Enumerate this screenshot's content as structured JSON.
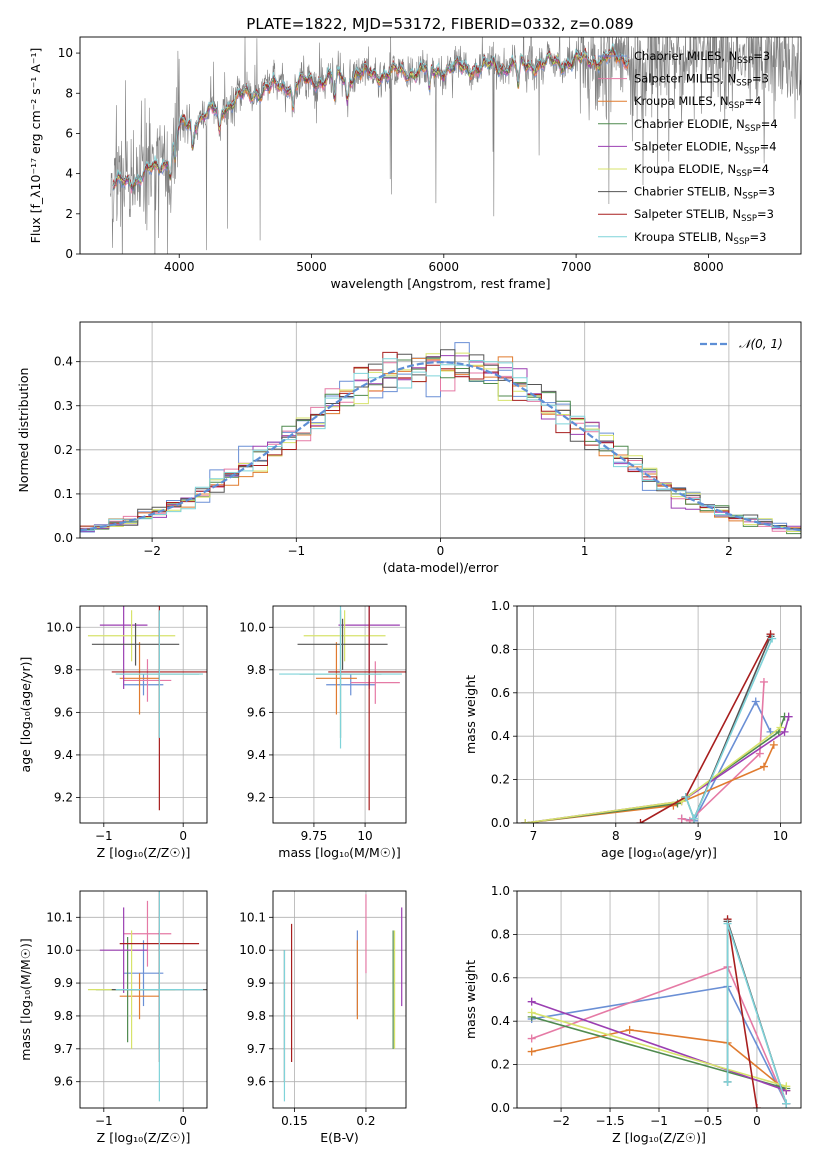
{
  "figure": {
    "title": "PLATE=1822, MJD=53172, FIBERID=0332, z=0.089"
  },
  "colors": {
    "Chabrier MILES": "#6a8fd5",
    "Salpeter MILES": "#e57aa5",
    "Kroupa MILES": "#e07b2f",
    "Chabrier ELODIE": "#4f8a4f",
    "Salpeter ELODIE": "#9b3fb2",
    "Kroupa ELODIE": "#d7e36b",
    "Chabrier STELIB": "#555555",
    "Salpeter STELIB": "#a81f1f",
    "Kroupa STELIB": "#7fd3d9",
    "data_spectrum": "#808080",
    "normal_curve": "#5e8fd6"
  },
  "chart_data": [
    {
      "id": "spectrum",
      "type": "line",
      "xlabel": "wavelength [Angstrom, rest frame]",
      "ylabel": "Flux [f_λ10⁻¹⁷ erg cm⁻² s⁻¹ A⁻¹]",
      "xlim": [
        3250,
        8700
      ],
      "ylim": [
        0,
        10.8
      ],
      "xticks": [
        4000,
        5000,
        6000,
        7000,
        8000
      ],
      "yticks": [
        0,
        2,
        4,
        6,
        8,
        10
      ],
      "legend_position": "right",
      "legend": [
        {
          "name": "Chabrier MILES, N_SSP=3",
          "base": "Chabrier MILES, N",
          "sub": "SSP",
          "tail": "=3"
        },
        {
          "name": "Salpeter MILES, N_SSP=3",
          "base": "Salpeter MILES, N",
          "sub": "SSP",
          "tail": "=3"
        },
        {
          "name": "Kroupa MILES, N_SSP=4",
          "base": "Kroupa MILES, N",
          "sub": "SSP",
          "tail": "=4"
        },
        {
          "name": "Chabrier ELODIE, N_SSP=4",
          "base": "Chabrier ELODIE, N",
          "sub": "SSP",
          "tail": "=4"
        },
        {
          "name": "Salpeter ELODIE, N_SSP=4",
          "base": "Salpeter ELODIE, N",
          "sub": "SSP",
          "tail": "=4"
        },
        {
          "name": "Kroupa ELODIE, N_SSP=4",
          "base": "Kroupa ELODIE, N",
          "sub": "SSP",
          "tail": "=4"
        },
        {
          "name": "Chabrier STELIB, N_SSP=3",
          "base": "Chabrier STELIB, N",
          "sub": "SSP",
          "tail": "=3"
        },
        {
          "name": "Salpeter STELIB, N_SSP=3",
          "base": "Salpeter STELIB, N",
          "sub": "SSP",
          "tail": "=3"
        },
        {
          "name": "Kroupa STELIB, N_SSP=3",
          "base": "Kroupa STELIB, N",
          "sub": "SSP",
          "tail": "=3"
        }
      ],
      "continuum": {
        "x": [
          3500,
          3700,
          3900,
          4000,
          4100,
          4300,
          4500,
          4700,
          5000,
          5300,
          5600,
          6000,
          6300,
          6600,
          7000,
          7400
        ],
        "y": [
          3.4,
          3.8,
          4.6,
          6.3,
          6.6,
          7.2,
          7.9,
          8.3,
          8.6,
          8.9,
          9.0,
          9.2,
          9.3,
          9.4,
          9.6,
          9.8
        ]
      },
      "model_range_x": [
        3500,
        7400
      ],
      "data_range_x": [
        3480,
        8700
      ],
      "absorption_lines_x": [
        3934,
        3969,
        4102,
        4304,
        4861,
        5175,
        5270,
        5890,
        6563
      ]
    },
    {
      "id": "residuals",
      "type": "histogram",
      "xlabel": "(data-model)/error",
      "ylabel": "Normed distribution",
      "xlim": [
        -2.5,
        2.5
      ],
      "ylim": [
        0,
        0.49
      ],
      "xticks": [
        -2,
        -1,
        0,
        1,
        2
      ],
      "yticks": [
        0.0,
        0.1,
        0.2,
        0.3,
        0.4
      ],
      "legend_position": "top-right",
      "legend": [
        {
          "name": "𝒩(0, 1)"
        }
      ],
      "bin_width": 0.1
    },
    {
      "id": "age-vs-Z",
      "type": "scatter",
      "xlabel": "Z [log₁₀(Z/Z☉)]",
      "ylabel": "age  [log₁₀(age/yr)]",
      "xlim": [
        -1.3,
        0.3
      ],
      "ylim": [
        9.08,
        10.1
      ],
      "xticks": [
        -1,
        0
      ],
      "yticks": [
        9.2,
        9.4,
        9.6,
        9.8,
        10.0
      ],
      "points": [
        {
          "model": "Chabrier MILES",
          "x": -0.5,
          "xerr": 0.25,
          "y": 9.73,
          "yerr": 0.05
        },
        {
          "model": "Salpeter MILES",
          "x": -0.45,
          "xerr": 0.3,
          "y": 9.75,
          "yerr": 0.1
        },
        {
          "model": "Kroupa MILES",
          "x": -0.55,
          "xerr": 0.25,
          "y": 9.76,
          "yerr": 0.17
        },
        {
          "model": "Chabrier ELODIE",
          "x": -0.3,
          "xerr": 0.5,
          "y": 9.78,
          "yerr": 0.3
        },
        {
          "model": "Salpeter ELODIE",
          "x": -0.75,
          "xerr": 0.3,
          "y": 10.01,
          "yerr": 0.3
        },
        {
          "model": "Kroupa ELODIE",
          "x": -0.65,
          "xerr": 0.55,
          "y": 9.96,
          "yerr": 0.12
        },
        {
          "model": "Chabrier STELIB",
          "x": -0.6,
          "xerr": 0.55,
          "y": 9.92,
          "yerr": 0.1
        },
        {
          "model": "Salpeter STELIB",
          "x": -0.3,
          "xerr": 0.6,
          "y": 9.79,
          "yerr": 0.65
        },
        {
          "model": "Kroupa STELIB",
          "x": -0.3,
          "xerr": 0.55,
          "y": 9.78,
          "yerr": 0.3
        }
      ]
    },
    {
      "id": "age-vs-mass",
      "type": "scatter",
      "xlabel": "mass [log₁₀(M/M☉)]",
      "ylabel": "",
      "xlim": [
        9.55,
        10.2
      ],
      "ylim": [
        9.08,
        10.1
      ],
      "xticks": [
        9.75,
        10.0
      ],
      "yticks": [
        9.2,
        9.4,
        9.6,
        9.8,
        10.0
      ],
      "points": [
        {
          "model": "Chabrier MILES",
          "x": 9.93,
          "xerr": 0.12,
          "y": 9.73,
          "yerr": 0.05
        },
        {
          "model": "Salpeter MILES",
          "x": 10.05,
          "xerr": 0.12,
          "y": 9.74,
          "yerr": 0.1
        },
        {
          "model": "Kroupa MILES",
          "x": 9.86,
          "xerr": 0.1,
          "y": 9.76,
          "yerr": 0.17
        },
        {
          "model": "Chabrier ELODIE",
          "x": 9.88,
          "xerr": 0.2,
          "y": 9.78,
          "yerr": 0.3
        },
        {
          "model": "Salpeter ELODIE",
          "x": 10.02,
          "xerr": 0.15,
          "y": 10.01,
          "yerr": 0.3
        },
        {
          "model": "Kroupa ELODIE",
          "x": 9.9,
          "xerr": 0.2,
          "y": 9.96,
          "yerr": 0.12
        },
        {
          "model": "Chabrier STELIB",
          "x": 9.89,
          "xerr": 0.22,
          "y": 9.92,
          "yerr": 0.12
        },
        {
          "model": "Salpeter STELIB",
          "x": 10.02,
          "xerr": 0.2,
          "y": 9.79,
          "yerr": 0.65
        },
        {
          "model": "Kroupa STELIB",
          "x": 9.88,
          "xerr": 0.3,
          "y": 9.78,
          "yerr": 0.35
        }
      ]
    },
    {
      "id": "weight-vs-age",
      "type": "line",
      "xlabel": "age  [log₁₀(age/yr)]",
      "ylabel": "mass weight",
      "xlim": [
        6.8,
        10.25
      ],
      "ylim": [
        0,
        1.0
      ],
      "xticks": [
        7,
        8,
        9,
        10
      ],
      "yticks": [
        0.0,
        0.2,
        0.4,
        0.6,
        0.8,
        1.0
      ],
      "series": [
        {
          "model": "Chabrier MILES",
          "x": [
            8.8,
            8.95,
            9.7,
            9.88
          ],
          "y": [
            0.02,
            0.01,
            0.56,
            0.42
          ]
        },
        {
          "model": "Salpeter MILES",
          "x": [
            8.8,
            8.9,
            9.75,
            9.8
          ],
          "y": [
            0.02,
            0.01,
            0.32,
            0.65
          ]
        },
        {
          "model": "Kroupa MILES",
          "x": [
            6.9,
            8.7,
            9.8,
            9.92
          ],
          "y": [
            0.0,
            0.08,
            0.26,
            0.36
          ]
        },
        {
          "model": "Chabrier ELODIE",
          "x": [
            6.9,
            8.75,
            9.98,
            10.05
          ],
          "y": [
            0.0,
            0.09,
            0.42,
            0.49
          ]
        },
        {
          "model": "Salpeter ELODIE",
          "x": [
            6.9,
            8.8,
            10.05,
            10.1
          ],
          "y": [
            0.0,
            0.1,
            0.42,
            0.49
          ]
        },
        {
          "model": "Kroupa ELODIE",
          "x": [
            6.9,
            8.8,
            10.0
          ],
          "y": [
            0.0,
            0.1,
            0.44
          ]
        },
        {
          "model": "Chabrier STELIB",
          "x": [
            8.85,
            8.95,
            9.88
          ],
          "y": [
            0.12,
            0.02,
            0.86
          ]
        },
        {
          "model": "Salpeter STELIB",
          "x": [
            8.3,
            8.85,
            9.88
          ],
          "y": [
            0.0,
            0.12,
            0.87
          ]
        },
        {
          "model": "Kroupa STELIB",
          "x": [
            8.85,
            8.95,
            9.9
          ],
          "y": [
            0.12,
            0.02,
            0.85
          ]
        }
      ]
    },
    {
      "id": "mass-vs-Z",
      "type": "scatter",
      "xlabel": "Z [log₁₀(Z/Z☉)]",
      "ylabel": "mass [log₁₀(M/M☉)]",
      "xlim": [
        -1.3,
        0.3
      ],
      "ylim": [
        9.52,
        10.18
      ],
      "xticks": [
        -1,
        0
      ],
      "yticks": [
        9.6,
        9.7,
        9.8,
        9.9,
        10.0,
        10.1
      ],
      "points": [
        {
          "model": "Chabrier MILES",
          "x": -0.5,
          "xerr": 0.25,
          "y": 9.93,
          "yerr": 0.1
        },
        {
          "model": "Salpeter MILES",
          "x": -0.45,
          "xerr": 0.3,
          "y": 10.05,
          "yerr": 0.1
        },
        {
          "model": "Kroupa MILES",
          "x": -0.55,
          "xerr": 0.25,
          "y": 9.86,
          "yerr": 0.07
        },
        {
          "model": "Chabrier ELODIE",
          "x": -0.7,
          "xerr": 0.4,
          "y": 9.88,
          "yerr": 0.16
        },
        {
          "model": "Salpeter ELODIE",
          "x": -0.75,
          "xerr": 0.3,
          "y": 10.0,
          "yerr": 0.13
        },
        {
          "model": "Kroupa ELODIE",
          "x": -0.65,
          "xerr": 0.55,
          "y": 9.88,
          "yerr": 0.18
        },
        {
          "model": "Chabrier STELIB",
          "x": -0.3,
          "xerr": 0.6,
          "y": 9.88,
          "yerr": 0.18
        },
        {
          "model": "Salpeter STELIB",
          "x": -0.3,
          "xerr": 0.5,
          "y": 10.02,
          "yerr": 0.36
        },
        {
          "model": "Kroupa STELIB",
          "x": -0.3,
          "xerr": 0.55,
          "y": 9.88,
          "yerr": 0.34
        }
      ]
    },
    {
      "id": "mass-vs-EBV",
      "type": "scatter",
      "xlabel": "E(B-V)",
      "ylabel": "",
      "xlim": [
        0.135,
        0.228
      ],
      "ylim": [
        9.52,
        10.18
      ],
      "xticks": [
        0.15,
        0.2
      ],
      "yticks": [
        9.6,
        9.7,
        9.8,
        9.9,
        10.0,
        10.1
      ],
      "points": [
        {
          "model": "Chabrier MILES",
          "x": 0.194,
          "y": 9.93,
          "yerr": 0.13
        },
        {
          "model": "Salpeter MILES",
          "x": 0.2,
          "y": 10.05,
          "yerr": 0.12
        },
        {
          "model": "Kroupa MILES",
          "x": 0.194,
          "y": 9.91,
          "yerr": 0.12
        },
        {
          "model": "Chabrier ELODIE",
          "x": 0.219,
          "y": 9.88,
          "yerr": 0.18
        },
        {
          "model": "Salpeter ELODIE",
          "x": 0.225,
          "y": 9.98,
          "yerr": 0.15
        },
        {
          "model": "Kroupa ELODIE",
          "x": 0.22,
          "y": 9.88,
          "yerr": 0.18
        },
        {
          "model": "Chabrier STELIB",
          "x": 0.143,
          "y": 9.8,
          "yerr": 0.2
        },
        {
          "model": "Salpeter STELIB",
          "x": 0.148,
          "y": 9.87,
          "yerr": 0.21
        },
        {
          "model": "Kroupa STELIB",
          "x": 0.143,
          "y": 9.77,
          "yerr": 0.23
        }
      ]
    },
    {
      "id": "weight-vs-Z",
      "type": "line",
      "xlabel": "Z [log₁₀(Z/Z☉)]",
      "ylabel": "mass weight",
      "xlim": [
        -2.45,
        0.45
      ],
      "ylim": [
        0,
        1.0
      ],
      "xticks": [
        -2.0,
        -1.5,
        -1.0,
        -0.5,
        0.0
      ],
      "yticks": [
        0.0,
        0.2,
        0.4,
        0.6,
        0.8,
        1.0
      ],
      "series": [
        {
          "model": "Chabrier MILES",
          "x": [
            -2.3,
            -0.3,
            0.3
          ],
          "y": [
            0.41,
            0.56,
            0.02
          ]
        },
        {
          "model": "Salpeter MILES",
          "x": [
            -2.3,
            -0.3,
            0.3
          ],
          "y": [
            0.32,
            0.65,
            0.02
          ]
        },
        {
          "model": "Kroupa MILES",
          "x": [
            -2.3,
            -1.3,
            -0.3,
            0.3
          ],
          "y": [
            0.26,
            0.36,
            0.3,
            0.08
          ]
        },
        {
          "model": "Chabrier ELODIE",
          "x": [
            -2.3,
            0.3
          ],
          "y": [
            0.42,
            0.09
          ]
        },
        {
          "model": "Salpeter ELODIE",
          "x": [
            -2.3,
            0.3
          ],
          "y": [
            0.49,
            0.08
          ]
        },
        {
          "model": "Kroupa ELODIE",
          "x": [
            -2.3,
            0.3
          ],
          "y": [
            0.44,
            0.1
          ]
        },
        {
          "model": "Chabrier STELIB",
          "x": [
            -0.3,
            -0.3,
            0.3
          ],
          "y": [
            0.12,
            0.86,
            0.02
          ]
        },
        {
          "model": "Salpeter STELIB",
          "x": [
            -0.3,
            0.0
          ],
          "y": [
            0.87,
            0.0
          ]
        },
        {
          "model": "Kroupa STELIB",
          "x": [
            -0.3,
            -0.3,
            0.3
          ],
          "y": [
            0.12,
            0.85,
            0.02
          ]
        }
      ]
    }
  ]
}
